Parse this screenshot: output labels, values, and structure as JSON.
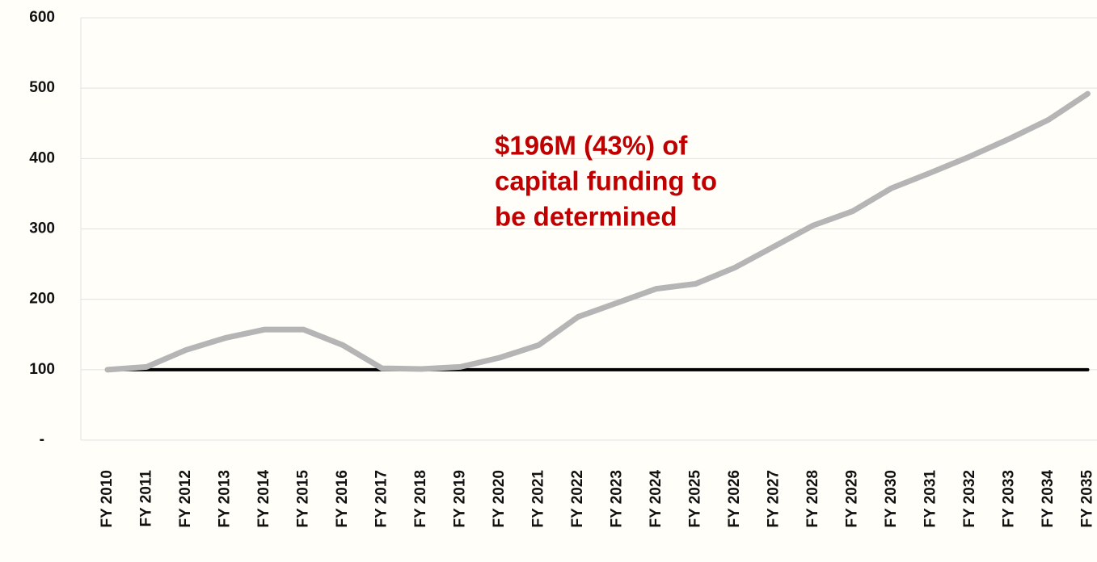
{
  "chart_data": {
    "type": "line",
    "categories": [
      "FY 2010",
      "FY 2011",
      "FY 2012",
      "FY 2013",
      "FY 2014",
      "FY 2015",
      "FY 2016",
      "FY 2017",
      "FY 2018",
      "FY 2019",
      "FY 2020",
      "FY 2021",
      "FY 2022",
      "FY 2023",
      "FY 2024",
      "FY 2025",
      "FY 2026",
      "FY 2027",
      "FY 2028",
      "FY 2029",
      "FY 2030",
      "FY 2031",
      "FY 2032",
      "FY 2033",
      "FY 2034",
      "FY 2035"
    ],
    "series": [
      {
        "color": "#000000",
        "values": [
          100,
          100,
          100,
          100,
          100,
          100,
          100,
          100,
          100,
          100,
          100,
          100,
          100,
          100,
          100,
          100,
          100,
          100,
          100,
          100,
          100,
          100,
          100,
          100,
          100,
          100
        ]
      },
      {
        "color": "#b5b5b5",
        "values": [
          100,
          104,
          128,
          145,
          157,
          157,
          135,
          102,
          101,
          104,
          117,
          135,
          175,
          195,
          215,
          222,
          245,
          275,
          305,
          325,
          358,
          380,
          403,
          428,
          455,
          492
        ]
      }
    ],
    "annotation": [
      "$196M (43%) of",
      "capital funding to",
      "be determined"
    ],
    "annotation_color": "#c00000",
    "ylim": [
      0,
      600
    ],
    "yticks": [
      {
        "value": 0,
        "label": "-"
      },
      100,
      200,
      300,
      400,
      500,
      600
    ],
    "grid": true
  }
}
